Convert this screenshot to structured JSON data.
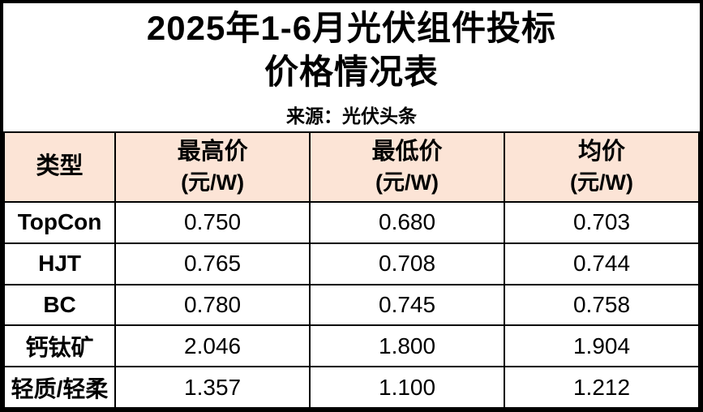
{
  "title": {
    "line1": "2025年1-6月光伏组件投标",
    "line2": "价格情况表"
  },
  "source": "来源：光伏头条",
  "colors": {
    "header_bg": "#fce4d6",
    "border": "#000000",
    "text": "#000000",
    "background": "#ffffff"
  },
  "table": {
    "headers": [
      {
        "label": "类型",
        "unit": ""
      },
      {
        "label": "最高价",
        "unit": "(元/W)"
      },
      {
        "label": "最低价",
        "unit": "(元/W)"
      },
      {
        "label": "均价",
        "unit": "(元/W)"
      }
    ],
    "rows": [
      {
        "type": "TopCon",
        "max": "0.750",
        "min": "0.680",
        "avg": "0.703"
      },
      {
        "type": "HJT",
        "max": "0.765",
        "min": "0.708",
        "avg": "0.744"
      },
      {
        "type": "BC",
        "max": "0.780",
        "min": "0.745",
        "avg": "0.758"
      },
      {
        "type": "钙钛矿",
        "max": "2.046",
        "min": "1.800",
        "avg": "1.904"
      },
      {
        "type": "轻质/轻柔",
        "max": "1.357",
        "min": "1.100",
        "avg": "1.212"
      }
    ]
  },
  "chart_data": {
    "type": "table",
    "title": "2025年1-6月光伏组件投标价格情况表",
    "subtitle": "来源：光伏头条",
    "columns": [
      "类型",
      "最高价 (元/W)",
      "最低价 (元/W)",
      "均价 (元/W)"
    ],
    "rows": [
      [
        "TopCon",
        0.75,
        0.68,
        0.703
      ],
      [
        "HJT",
        0.765,
        0.708,
        0.744
      ],
      [
        "BC",
        0.78,
        0.745,
        0.758
      ],
      [
        "钙钛矿",
        2.046,
        1.8,
        1.904
      ],
      [
        "轻质/轻柔",
        1.357,
        1.1,
        1.212
      ]
    ]
  }
}
